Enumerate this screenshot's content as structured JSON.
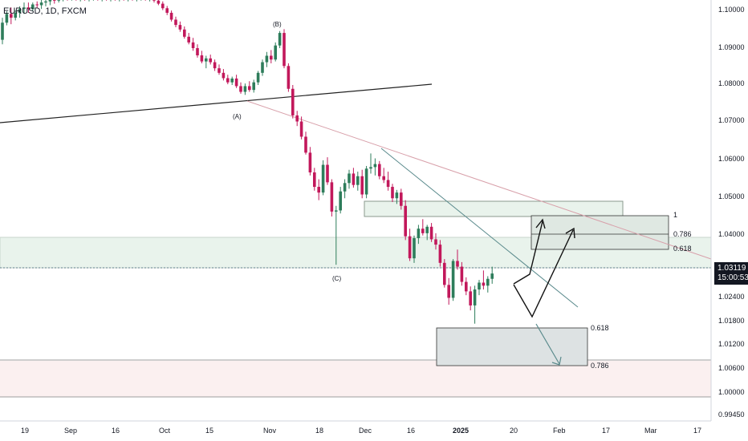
{
  "header": {
    "symbol": "EURUSD, 1D, FXCM"
  },
  "price_tag": {
    "price": "1.03119",
    "countdown": "15:00:53"
  },
  "chart_data": {
    "type": "candlestick",
    "colors": {
      "up": "#2e7d5b",
      "down": "#c2185b"
    },
    "price_axis": {
      "ticks": [
        "1.10000",
        "1.09000",
        "1.08000",
        "1.07000",
        "1.06000",
        "1.05000",
        "1.04000",
        "1.02400",
        "1.01800",
        "1.01200",
        "1.00600",
        "1.00000",
        "0.99450"
      ]
    },
    "time_axis": {
      "ticks": [
        "19",
        "Sep",
        "16",
        "Oct",
        "15",
        "Nov",
        "18",
        "Dec",
        "16",
        "2025",
        "20",
        "Feb",
        "17",
        "Mar",
        "17"
      ]
    },
    "wave_labels": [
      "(A)",
      "(B)",
      "(C)"
    ],
    "fib_upper": [
      "1",
      "0.786",
      "0.618"
    ],
    "fib_lower": [
      "0.618",
      "0.786"
    ],
    "candles": [
      [
        1.0927,
        1.0985,
        1.0915,
        1.0972
      ],
      [
        1.0972,
        1.1002,
        1.0965,
        1.0995
      ],
      [
        1.0995,
        1.1012,
        1.0968,
        1.0985
      ],
      [
        1.0985,
        1.1005,
        1.0978,
        1.0998
      ],
      [
        1.0998,
        1.1015,
        1.0985,
        1.1008
      ],
      [
        1.1008,
        1.1025,
        1.0995,
        1.1012
      ],
      [
        1.1012,
        1.1025,
        1.0998,
        1.1008
      ],
      [
        1.1008,
        1.1025,
        1.1002,
        1.102
      ],
      [
        1.102,
        1.1028,
        1.101,
        1.1018
      ],
      [
        1.1018,
        1.1032,
        1.1008,
        1.1025
      ],
      [
        1.1025,
        1.1035,
        1.1015,
        1.1028
      ],
      [
        1.1028,
        1.104,
        1.1018,
        1.1032
      ],
      [
        1.1032,
        1.1038,
        1.1022,
        1.103
      ],
      [
        1.103,
        1.104,
        1.1025,
        1.1035
      ],
      [
        1.1035,
        1.1042,
        1.1028,
        1.1038
      ],
      [
        1.1038,
        1.1042,
        1.103,
        1.1035
      ],
      [
        1.1035,
        1.104,
        1.103,
        1.1038
      ],
      [
        1.1038,
        1.104,
        1.103,
        1.1034
      ],
      [
        1.1034,
        1.104,
        1.1028,
        1.1036
      ],
      [
        1.1036,
        1.104,
        1.103,
        1.1032
      ],
      [
        1.1032,
        1.104,
        1.1028,
        1.1036
      ],
      [
        1.1036,
        1.1042,
        1.103,
        1.1038
      ],
      [
        1.1038,
        1.104,
        1.103,
        1.1034
      ],
      [
        1.1034,
        1.104,
        1.1028,
        1.1036
      ],
      [
        1.1036,
        1.104,
        1.103,
        1.1032
      ],
      [
        1.1032,
        1.104,
        1.1028,
        1.1036
      ],
      [
        1.1036,
        1.104,
        1.103,
        1.1034
      ],
      [
        1.1034,
        1.104,
        1.1028,
        1.1036
      ],
      [
        1.1036,
        1.104,
        1.103,
        1.1032
      ],
      [
        1.1032,
        1.104,
        1.1028,
        1.1036
      ],
      [
        1.1036,
        1.104,
        1.103,
        1.1034
      ],
      [
        1.1034,
        1.104,
        1.1028,
        1.1036
      ],
      [
        1.1036,
        1.1042,
        1.103,
        1.1038
      ],
      [
        1.1038,
        1.1042,
        1.103,
        1.1034
      ],
      [
        1.1034,
        1.104,
        1.1028,
        1.1036
      ],
      [
        1.1036,
        1.104,
        1.1025,
        1.103
      ],
      [
        1.103,
        1.1036,
        1.1018,
        1.1022
      ],
      [
        1.1022,
        1.1028,
        1.1005,
        1.101
      ],
      [
        1.101,
        1.1016,
        1.0992,
        1.0998
      ],
      [
        1.0998,
        1.1004,
        1.0975,
        1.098
      ],
      [
        1.098,
        1.0988,
        1.096,
        1.0966
      ],
      [
        1.0966,
        1.0975,
        1.0948,
        1.0954
      ],
      [
        1.0954,
        1.0962,
        1.093,
        1.0935
      ],
      [
        1.0935,
        1.0945,
        1.0915,
        1.092
      ],
      [
        1.092,
        1.0932,
        1.0898,
        1.0905
      ],
      [
        1.0905,
        1.0915,
        1.088,
        1.0886
      ],
      [
        1.0886,
        1.0898,
        1.0865,
        1.087
      ],
      [
        1.087,
        1.0885,
        1.0852,
        1.0878
      ],
      [
        1.0878,
        1.0888,
        1.0862,
        1.0868
      ],
      [
        1.0868,
        1.0875,
        1.0845,
        1.0852
      ],
      [
        1.0852,
        1.0862,
        1.0835,
        1.084
      ],
      [
        1.084,
        1.085,
        1.082,
        1.0826
      ],
      [
        1.0826,
        1.0835,
        1.081,
        1.0815
      ],
      [
        1.0815,
        1.083,
        1.0808,
        1.0825
      ],
      [
        1.0825,
        1.0835,
        1.08,
        1.0805
      ],
      [
        1.0805,
        1.0815,
        1.0785,
        1.079
      ],
      [
        1.079,
        1.0812,
        1.0782,
        1.0805
      ],
      [
        1.0805,
        1.0818,
        1.079,
        1.0795
      ],
      [
        1.0795,
        1.0822,
        1.0788,
        1.0815
      ],
      [
        1.0815,
        1.0845,
        1.0808,
        1.084
      ],
      [
        1.084,
        1.0875,
        1.0832,
        1.0868
      ],
      [
        1.0868,
        1.0895,
        1.0855,
        1.0885
      ],
      [
        1.0885,
        1.09,
        1.0865,
        1.0875
      ],
      [
        1.0875,
        1.092,
        1.087,
        1.0912
      ],
      [
        1.0912,
        1.095,
        1.0905,
        1.0945
      ],
      [
        1.0945,
        1.0955,
        1.0852,
        1.0858
      ],
      [
        1.0858,
        1.0865,
        1.079,
        1.0798
      ],
      [
        1.0798,
        1.0808,
        1.072,
        1.0728
      ],
      [
        1.0728,
        1.074,
        1.07,
        1.0712
      ],
      [
        1.0712,
        1.0725,
        1.0665,
        1.0672
      ],
      [
        1.0672,
        1.0685,
        1.0625,
        1.063
      ],
      [
        1.063,
        1.0645,
        1.057,
        1.0578
      ],
      [
        1.0578,
        1.059,
        1.053,
        1.054
      ],
      [
        1.054,
        1.056,
        1.0505,
        1.0525
      ],
      [
        1.0525,
        1.061,
        1.0518,
        1.0598
      ],
      [
        1.0598,
        1.0618,
        1.0545,
        1.0552
      ],
      [
        1.0552,
        1.056,
        1.0462,
        1.0475
      ],
      [
        1.0475,
        1.049,
        1.0335,
        1.0478
      ],
      [
        1.0478,
        1.054,
        1.047,
        1.0528
      ],
      [
        1.0528,
        1.056,
        1.051,
        1.055
      ],
      [
        1.055,
        1.0585,
        1.0535,
        1.0575
      ],
      [
        1.0575,
        1.059,
        1.0538,
        1.0545
      ],
      [
        1.0545,
        1.058,
        1.053,
        1.0568
      ],
      [
        1.0568,
        1.0585,
        1.051,
        1.052
      ],
      [
        1.052,
        1.0595,
        1.051,
        1.0588
      ],
      [
        1.0588,
        1.0628,
        1.0575,
        1.0592
      ],
      [
        1.0592,
        1.0615,
        1.057,
        1.06
      ],
      [
        1.06,
        1.0608,
        1.056,
        1.0568
      ],
      [
        1.0568,
        1.059,
        1.055,
        1.0558
      ],
      [
        1.0558,
        1.058,
        1.053,
        1.054
      ],
      [
        1.054,
        1.0548,
        1.05,
        1.051
      ],
      [
        1.051,
        1.0532,
        1.0495,
        1.0525
      ],
      [
        1.0525,
        1.0535,
        1.048,
        1.049
      ],
      [
        1.049,
        1.0505,
        1.04,
        1.041
      ],
      [
        1.041,
        1.043,
        1.0345,
        1.0352
      ],
      [
        1.0352,
        1.0412,
        1.034,
        1.0405
      ],
      [
        1.0405,
        1.044,
        1.039,
        1.043
      ],
      [
        1.043,
        1.0455,
        1.0412,
        1.0418
      ],
      [
        1.0418,
        1.044,
        1.04,
        1.0435
      ],
      [
        1.0435,
        1.0445,
        1.0395,
        1.0402
      ],
      [
        1.0402,
        1.0418,
        1.0375,
        1.0388
      ],
      [
        1.0388,
        1.04,
        1.033,
        1.034
      ],
      [
        1.034,
        1.035,
        1.0275,
        1.0282
      ],
      [
        1.0282,
        1.03,
        1.023,
        1.0248
      ],
      [
        1.0248,
        1.035,
        1.024,
        1.0345
      ],
      [
        1.0345,
        1.0375,
        1.0322,
        1.033
      ],
      [
        1.033,
        1.0342,
        1.028,
        1.029
      ],
      [
        1.029,
        1.0302,
        1.0255,
        1.0265
      ],
      [
        1.0265,
        1.0278,
        1.0215,
        1.0228
      ],
      [
        1.0228,
        1.028,
        1.018,
        1.027
      ],
      [
        1.027,
        1.0295,
        1.0255,
        1.0288
      ],
      [
        1.0288,
        1.032,
        1.027,
        1.028
      ],
      [
        1.028,
        1.0305,
        1.0262,
        1.0298
      ],
      [
        1.0298,
        1.033,
        1.0285,
        1.0312
      ]
    ]
  }
}
